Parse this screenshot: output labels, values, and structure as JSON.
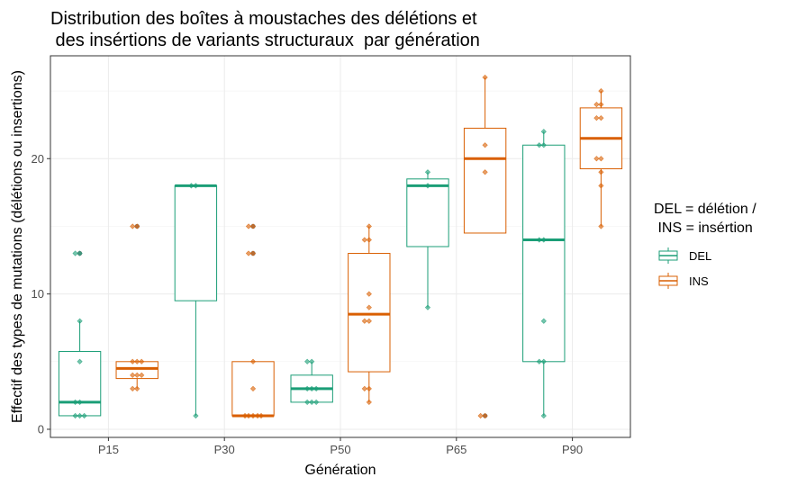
{
  "chart_data": {
    "type": "boxplot",
    "title_lines": [
      "Distribution des boîtes à moustaches des délétions et",
      " des insértions de variants structuraux  par génération"
    ],
    "xlabel": "Génération",
    "ylabel": "Effectif des types de mutations (délétions ou insertions)",
    "categories": [
      "P15",
      "P30",
      "P50",
      "P65",
      "P90"
    ],
    "ylim": [
      -0.6,
      27.6
    ],
    "yticks": [
      0,
      10,
      20
    ],
    "grid": true,
    "legend": {
      "title_lines": [
        "DEL = délétion /",
        " INS = insértion"
      ],
      "placement": "right"
    },
    "series": [
      {
        "name": "DEL",
        "color": "#1b9e77",
        "boxes": [
          {
            "category": "P15",
            "min": 1,
            "q1": 1,
            "median": 2,
            "q3": 5.75,
            "max": 8
          },
          {
            "category": "P30",
            "min": 1,
            "q1": 9.5,
            "median": 18,
            "q3": 18,
            "max": 18
          },
          {
            "category": "P50",
            "min": 2,
            "q1": 2,
            "median": 3,
            "q3": 4,
            "max": 5
          },
          {
            "category": "P65",
            "min": 9,
            "q1": 13.5,
            "median": 18,
            "q3": 18.5,
            "max": 19
          },
          {
            "category": "P90",
            "min": 1,
            "q1": 5,
            "median": 14,
            "q3": 21,
            "max": 22
          }
        ],
        "outliers": [
          {
            "category": "P15",
            "values": [
              13,
              13
            ]
          }
        ],
        "points": [
          {
            "category": "P15",
            "values": [
              1,
              1,
              1,
              2,
              2,
              5,
              8,
              13,
              13
            ]
          },
          {
            "category": "P30",
            "values": [
              1,
              18,
              18
            ]
          },
          {
            "category": "P50",
            "values": [
              2,
              2,
              2,
              3,
              3,
              3,
              5,
              5
            ]
          },
          {
            "category": "P65",
            "values": [
              9,
              18,
              19
            ]
          },
          {
            "category": "P90",
            "values": [
              1,
              5,
              5,
              8,
              14,
              14,
              21,
              21,
              22
            ]
          }
        ]
      },
      {
        "name": "INS",
        "color": "#d95f02",
        "boxes": [
          {
            "category": "P15",
            "min": 3,
            "q1": 3.75,
            "median": 4.5,
            "q3": 5,
            "max": 5
          },
          {
            "category": "P30",
            "min": 1,
            "q1": 1,
            "median": 1,
            "q3": 5,
            "max": 5
          },
          {
            "category": "P50",
            "min": 2,
            "q1": 4.25,
            "median": 8.5,
            "q3": 13,
            "max": 15
          },
          {
            "category": "P65",
            "min": 14.5,
            "q1": 14.5,
            "median": 20,
            "q3": 22.25,
            "max": 26
          },
          {
            "category": "P90",
            "min": 15,
            "q1": 19.25,
            "median": 21.5,
            "q3": 23.75,
            "max": 25
          }
        ],
        "outliers": [
          {
            "category": "P15",
            "values": [
              15,
              15
            ]
          },
          {
            "category": "P30",
            "values": [
              13,
              13,
              15,
              15
            ]
          },
          {
            "category": "P65",
            "values": [
              1,
              1
            ]
          }
        ],
        "points": [
          {
            "category": "P15",
            "values": [
              3,
              3,
              4,
              4,
              4,
              5,
              5,
              5,
              15,
              15
            ]
          },
          {
            "category": "P30",
            "values": [
              1,
              1,
              1,
              1,
              1,
              3,
              5,
              13,
              13,
              15,
              15
            ]
          },
          {
            "category": "P50",
            "values": [
              2,
              3,
              3,
              8,
              8,
              9,
              10,
              14,
              14,
              15
            ]
          },
          {
            "category": "P65",
            "values": [
              1,
              1,
              19,
              21,
              26
            ]
          },
          {
            "category": "P90",
            "values": [
              15,
              18,
              19,
              20,
              20,
              23,
              23,
              24,
              24,
              25
            ]
          }
        ]
      }
    ]
  }
}
